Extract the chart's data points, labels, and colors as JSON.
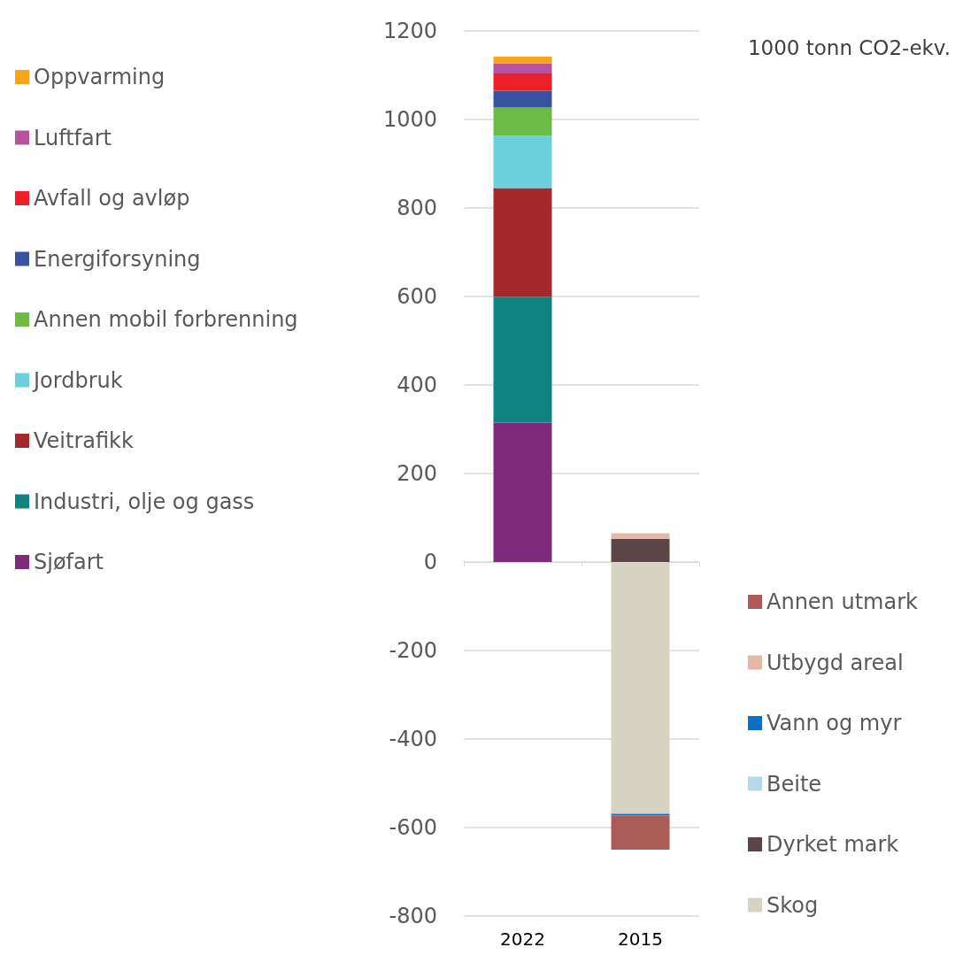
{
  "chart_data": {
    "type": "bar",
    "stacked": true,
    "categories": [
      "2022",
      "2015"
    ],
    "series": [
      {
        "name": "Sjøfart",
        "color": "#7e2a7d",
        "values": [
          315,
          null
        ]
      },
      {
        "name": "Industri, olje og gass",
        "color": "#10827f",
        "values": [
          284,
          null
        ]
      },
      {
        "name": "Veitrafikk",
        "color": "#a3292b",
        "values": [
          246,
          null
        ]
      },
      {
        "name": "Jordbruk",
        "color": "#6ccfdc",
        "values": [
          118,
          null
        ]
      },
      {
        "name": "Annen mobil forbrenning",
        "color": "#6cbb45",
        "values": [
          64,
          null
        ]
      },
      {
        "name": "Energiforsyning",
        "color": "#3853a3",
        "values": [
          38,
          null
        ]
      },
      {
        "name": "Avfall og avløp",
        "color": "#ed2027",
        "values": [
          39,
          null
        ]
      },
      {
        "name": "Luftfart",
        "color": "#b7529f",
        "values": [
          23,
          null
        ]
      },
      {
        "name": "Oppvarming",
        "color": "#f9a51b",
        "values": [
          15,
          null
        ]
      },
      {
        "name": "Skog",
        "color": "#d6d3c4",
        "values": [
          null,
          -569
        ]
      },
      {
        "name": "Dyrket mark",
        "color": "#5a4548",
        "values": [
          null,
          52
        ]
      },
      {
        "name": "Beite",
        "color": "#b5d9ec",
        "values": [
          null,
          null
        ]
      },
      {
        "name": "Vann og myr",
        "color": "#0c6fc4",
        "values": [
          null,
          -4
        ]
      },
      {
        "name": "Utbygd areal",
        "color": "#e3b8a6",
        "values": [
          null,
          13
        ]
      },
      {
        "name": "Annen utmark",
        "color": "#ad5b56",
        "values": [
          null,
          -77
        ]
      }
    ],
    "ylim": [
      -800,
      1200
    ],
    "yticks": [
      -800,
      -600,
      -400,
      -200,
      0,
      200,
      400,
      600,
      800,
      1000,
      1200
    ],
    "grid": "y",
    "legend": "left",
    "annotations": [
      "1000 tonn CO2-ekv."
    ]
  }
}
